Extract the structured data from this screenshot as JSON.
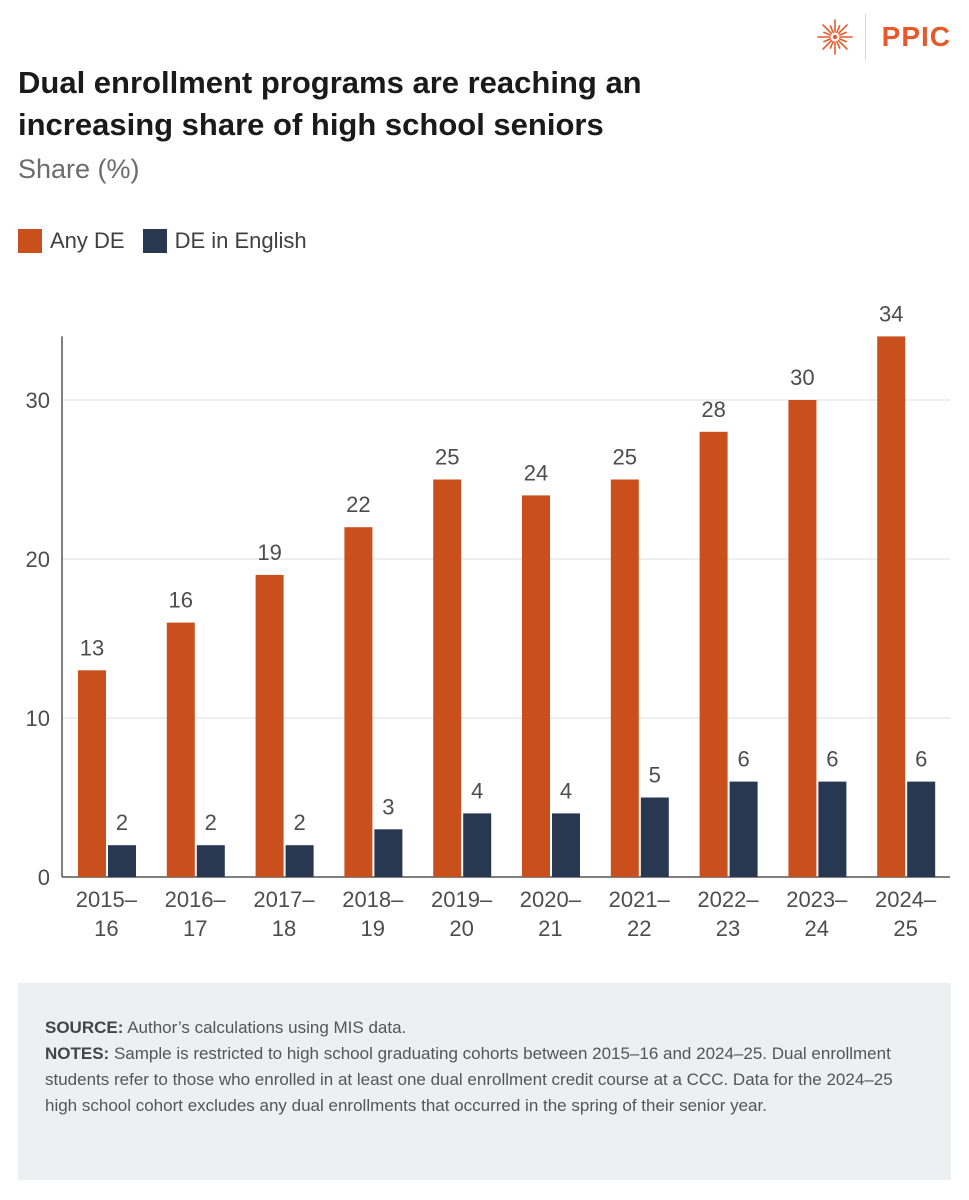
{
  "logo": {
    "text": "PPIC"
  },
  "title": "Dual enrollment programs are reaching an increasing share of high school seniors",
  "subtitle": "Share (%)",
  "colors": {
    "any_de": "#c94f1c",
    "de_english": "#273850",
    "grid": "#dcdcdc",
    "axis": "#555555",
    "label": "#4d4d4d",
    "logo": "#e8592a"
  },
  "legend": [
    {
      "label": "Any DE",
      "color": "#c94f1c"
    },
    {
      "label": "DE in English",
      "color": "#273850"
    }
  ],
  "chart_data": {
    "type": "bar",
    "title": "Dual enrollment programs are reaching an increasing share of high school seniors",
    "ylabel": "Share (%)",
    "xlabel": "",
    "categories": [
      [
        "2015–",
        "16"
      ],
      [
        "2016–",
        "17"
      ],
      [
        "2017–",
        "18"
      ],
      [
        "2018–",
        "19"
      ],
      [
        "2019–",
        "20"
      ],
      [
        "2020–",
        "21"
      ],
      [
        "2021–",
        "22"
      ],
      [
        "2022–",
        "23"
      ],
      [
        "2023–",
        "24"
      ],
      [
        "2024–",
        "25"
      ]
    ],
    "series": [
      {
        "name": "Any DE",
        "values": [
          13,
          16,
          19,
          22,
          25,
          24,
          25,
          28,
          30,
          34
        ]
      },
      {
        "name": "DE in English",
        "values": [
          2,
          2,
          2,
          3,
          4,
          4,
          5,
          6,
          6,
          6
        ]
      }
    ],
    "ylim": [
      0,
      34
    ],
    "yticks": [
      0,
      10,
      20,
      30
    ],
    "grid": true,
    "legend_position": "top-left"
  },
  "notes": {
    "source_label": "SOURCE:",
    "source_text": " Author’s calculations using MIS data.",
    "notes_label": "NOTES:",
    "notes_text": " Sample is restricted to high school graduating cohorts between 2015–16 and 2024–25. Dual enrollment students refer to those who enrolled in at least one dual enrollment credit course at a CCC. Data for the 2024–25 high school cohort excludes any dual enrollments that occurred in the spring of their senior year."
  }
}
